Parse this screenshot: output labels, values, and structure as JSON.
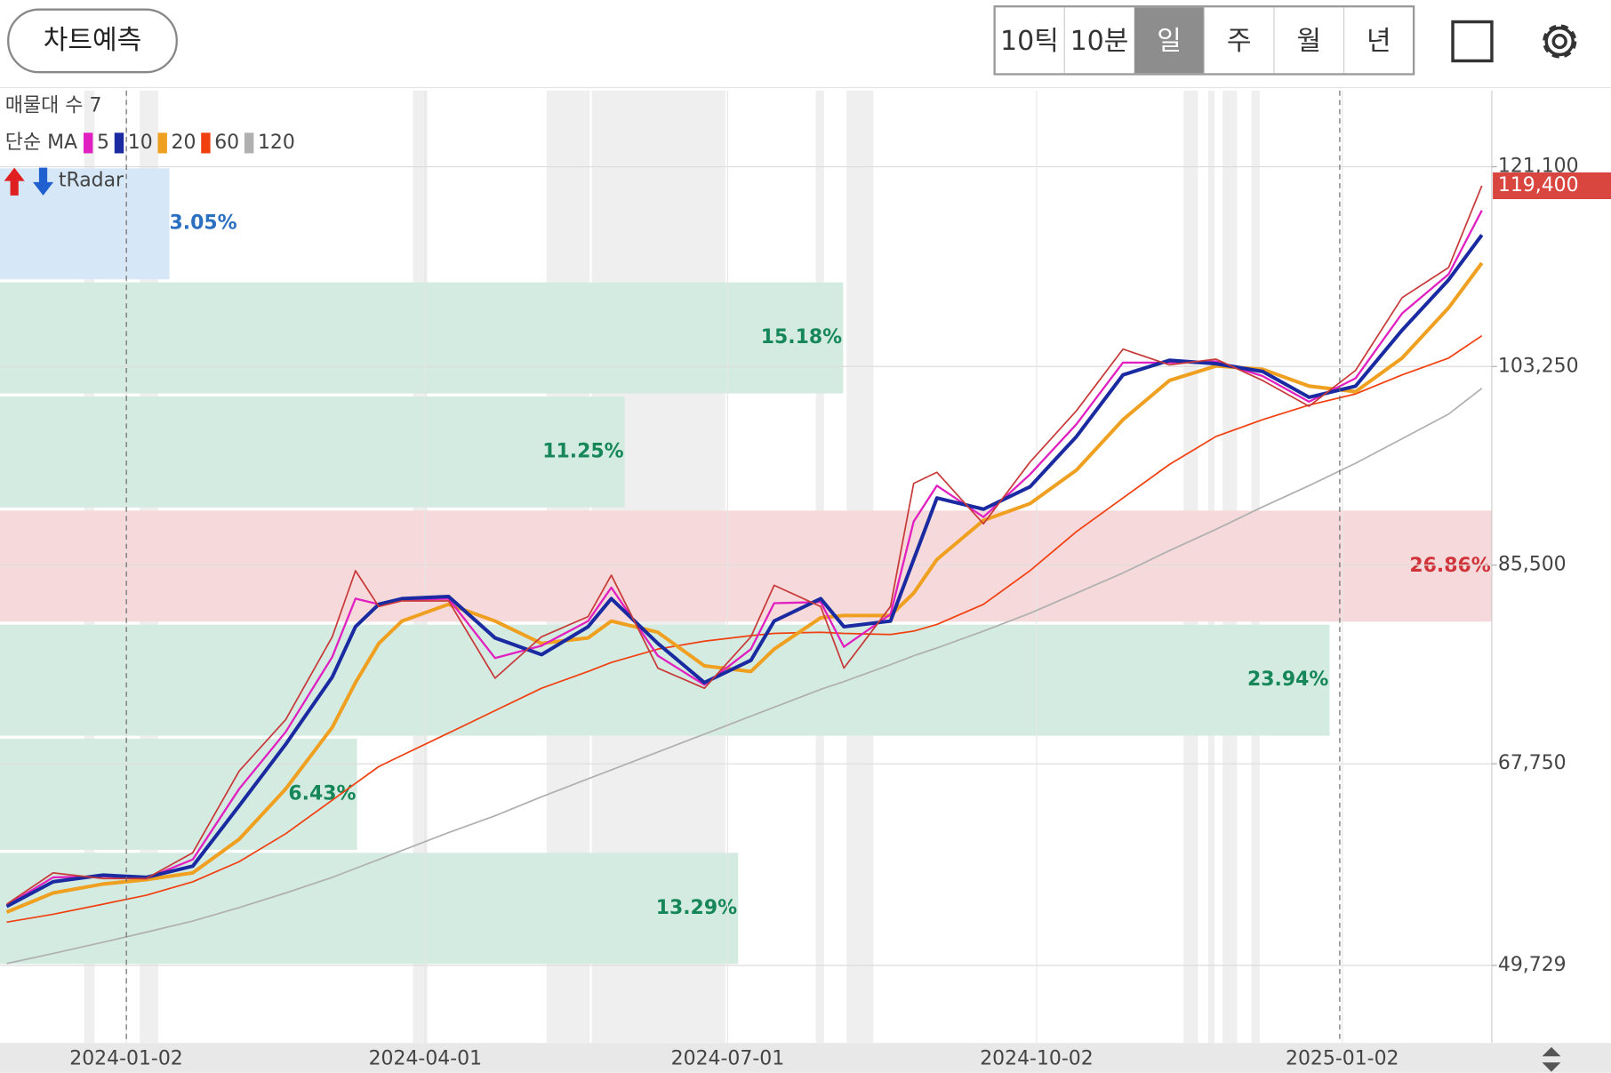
{
  "header": {
    "predict_button": "차트예측",
    "tabs": [
      "10틱",
      "10분",
      "일",
      "주",
      "월",
      "년"
    ],
    "selected_tab": 2
  },
  "chart_data": {
    "type": "line",
    "profile_label": "매물대 수 7",
    "ma_label": "단순 MA",
    "indicator_label": "tRadar",
    "x": [
      "2023-11-27",
      "2023-12-11",
      "2023-12-26",
      "2024-01-08",
      "2024-01-22",
      "2024-02-05",
      "2024-02-19",
      "2024-03-04",
      "2024-03-11",
      "2024-03-18",
      "2024-03-25",
      "2024-04-08",
      "2024-04-22",
      "2024-05-06",
      "2024-05-20",
      "2024-05-27",
      "2024-06-10",
      "2024-06-24",
      "2024-07-08",
      "2024-07-15",
      "2024-07-29",
      "2024-08-05",
      "2024-08-19",
      "2024-08-26",
      "2024-09-02",
      "2024-09-16",
      "2024-09-30",
      "2024-10-14",
      "2024-10-28",
      "2024-11-11",
      "2024-11-25",
      "2024-12-09",
      "2024-12-23",
      "2025-01-06",
      "2025-01-20",
      "2025-02-03",
      "2025-02-13"
    ],
    "price": {
      "color": "#c83a3a",
      "values": [
        55200,
        58000,
        57500,
        57500,
        59800,
        67100,
        71700,
        79100,
        85000,
        81800,
        82300,
        82300,
        75400,
        79100,
        80900,
        84600,
        76300,
        74500,
        79100,
        83700,
        81800,
        76300,
        81800,
        92800,
        93800,
        89200,
        94700,
        99300,
        104800,
        103400,
        103900,
        102000,
        99700,
        102900,
        109400,
        112100,
        119400
      ]
    },
    "series": [
      {
        "name": "5",
        "color": "#e020c0",
        "values": [
          55100,
          57600,
          57700,
          57500,
          59200,
          65500,
          70600,
          77300,
          82500,
          82000,
          82400,
          82500,
          77200,
          78300,
          80500,
          83500,
          77400,
          74800,
          78000,
          82100,
          82200,
          78200,
          81100,
          89400,
          92600,
          89800,
          93600,
          98100,
          103600,
          103600,
          103700,
          102400,
          100100,
          102200,
          108000,
          111500,
          117200
        ]
      },
      {
        "name": "10",
        "color": "#1a2aa0",
        "values": [
          55000,
          57200,
          57800,
          57600,
          58600,
          64000,
          69500,
          75500,
          80000,
          82000,
          82500,
          82700,
          79000,
          77500,
          80000,
          82500,
          78500,
          75000,
          77000,
          80500,
          82500,
          80000,
          80500,
          86000,
          91500,
          90500,
          92500,
          97000,
          102500,
          103800,
          103500,
          102800,
          100500,
          101500,
          106500,
          111000,
          115000
        ]
      },
      {
        "name": "20",
        "color": "#f0a020",
        "values": [
          54500,
          56200,
          57000,
          57400,
          58000,
          61000,
          65500,
          71000,
          75000,
          78500,
          80500,
          82000,
          80500,
          78500,
          79000,
          80500,
          79500,
          76500,
          76000,
          78000,
          80800,
          81000,
          81000,
          83000,
          86000,
          89500,
          91000,
          94000,
          98500,
          102000,
          103300,
          103000,
          101500,
          101000,
          104000,
          108500,
          112500
        ]
      },
      {
        "name": "60",
        "color": "#f04010",
        "values": [
          53600,
          54300,
          55200,
          56000,
          57200,
          59000,
          61500,
          64500,
          66000,
          67500,
          68500,
          70500,
          72500,
          74500,
          76000,
          76800,
          78000,
          78700,
          79200,
          79400,
          79500,
          79400,
          79300,
          79600,
          80200,
          82000,
          85000,
          88500,
          91500,
          94500,
          97000,
          98500,
          99800,
          100800,
          102500,
          104000,
          106000
        ]
      },
      {
        "name": "120",
        "color": "#b0b0b0",
        "values": [
          49900,
          50800,
          51800,
          52700,
          53700,
          54900,
          56200,
          57600,
          58400,
          59200,
          60000,
          61600,
          63100,
          64800,
          66400,
          67200,
          68800,
          70400,
          72000,
          72800,
          74400,
          75100,
          76600,
          77400,
          78100,
          79600,
          81200,
          83000,
          84800,
          86800,
          88700,
          90700,
          92600,
          94600,
          96800,
          99000,
          101300
        ]
      }
    ],
    "xlim": [
      "2023-11-25",
      "2025-02-16"
    ],
    "xticks": [
      "2024-01-02",
      "2024-04-01",
      "2024-07-01",
      "2024-10-02",
      "2025-01-02"
    ],
    "ylim": [
      42800,
      127900
    ],
    "yticks": [
      {
        "value": 49729,
        "label": "49,729"
      },
      {
        "value": 67750,
        "label": "67,750"
      },
      {
        "value": 85500,
        "label": "85,500"
      },
      {
        "value": 103250,
        "label": "103,250"
      },
      {
        "value": 121100,
        "label": "121,100"
      }
    ],
    "grid": true,
    "current_price": {
      "value": 119400,
      "label": "119,400",
      "color": "#d9453f"
    },
    "volume_profile": {
      "price_range": [
        49729,
        121100
      ],
      "values": [
        13.29,
        6.43,
        23.94,
        26.86,
        11.25,
        15.18,
        3.05
      ],
      "value_labels": [
        "13.29%",
        "6.43%",
        "23.94%",
        "26.86%",
        "11.25%",
        "15.18%",
        "3.05%"
      ],
      "colors": [
        "#d4ebe2",
        "#d4ebe2",
        "#d4ebe2",
        "#f6d9da",
        "#d4ebe2",
        "#d4ebe2",
        "#d6e7f8"
      ],
      "label_colors": [
        "#17875a",
        "#17875a",
        "#17875a",
        "#d0343a",
        "#17875a",
        "#17875a",
        "#2a6fc0"
      ]
    }
  }
}
